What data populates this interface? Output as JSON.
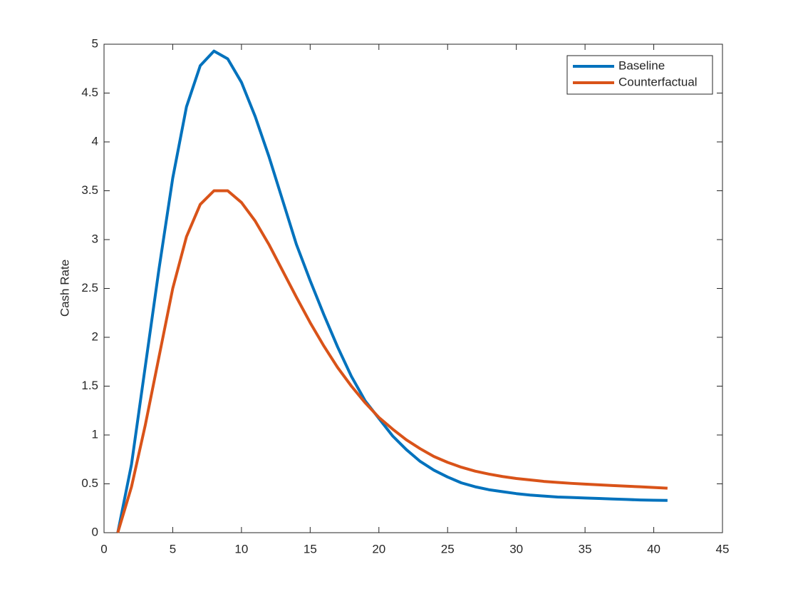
{
  "chart_data": {
    "type": "line",
    "ylabel": "Cash Rate",
    "x": [
      1,
      2,
      3,
      4,
      5,
      6,
      7,
      8,
      9,
      10,
      11,
      12,
      13,
      14,
      15,
      16,
      17,
      18,
      19,
      20,
      21,
      22,
      23,
      24,
      25,
      26,
      27,
      28,
      29,
      30,
      31,
      32,
      33,
      34,
      35,
      36,
      37,
      38,
      39,
      40,
      41
    ],
    "series": [
      {
        "name": "Baseline",
        "color": "#0072bd",
        "values": [
          0,
          0.7,
          1.7,
          2.7,
          3.63,
          4.36,
          4.78,
          4.93,
          4.85,
          4.61,
          4.26,
          3.85,
          3.4,
          2.95,
          2.58,
          2.23,
          1.9,
          1.6,
          1.35,
          1.17,
          0.99,
          0.85,
          0.73,
          0.64,
          0.57,
          0.51,
          0.47,
          0.44,
          0.42,
          0.4,
          0.385,
          0.375,
          0.365,
          0.36,
          0.355,
          0.35,
          0.345,
          0.34,
          0.335,
          0.332,
          0.33
        ]
      },
      {
        "name": "Counterfactual",
        "color": "#d95319",
        "values": [
          0,
          0.47,
          1.1,
          1.8,
          2.5,
          3.03,
          3.36,
          3.5,
          3.5,
          3.38,
          3.19,
          2.95,
          2.68,
          2.41,
          2.15,
          1.91,
          1.69,
          1.5,
          1.33,
          1.18,
          1.06,
          0.95,
          0.86,
          0.78,
          0.72,
          0.67,
          0.63,
          0.6,
          0.575,
          0.555,
          0.54,
          0.525,
          0.515,
          0.505,
          0.497,
          0.49,
          0.483,
          0.476,
          0.47,
          0.463,
          0.455
        ]
      }
    ],
    "xlim": [
      0,
      45
    ],
    "xticks": [
      0,
      5,
      10,
      15,
      20,
      25,
      30,
      35,
      40,
      45
    ],
    "ylim": [
      0,
      5
    ],
    "yticks": [
      0,
      0.5,
      1,
      1.5,
      2,
      2.5,
      3,
      3.5,
      4,
      4.5,
      5
    ],
    "grid": false,
    "legend": "northeast"
  }
}
